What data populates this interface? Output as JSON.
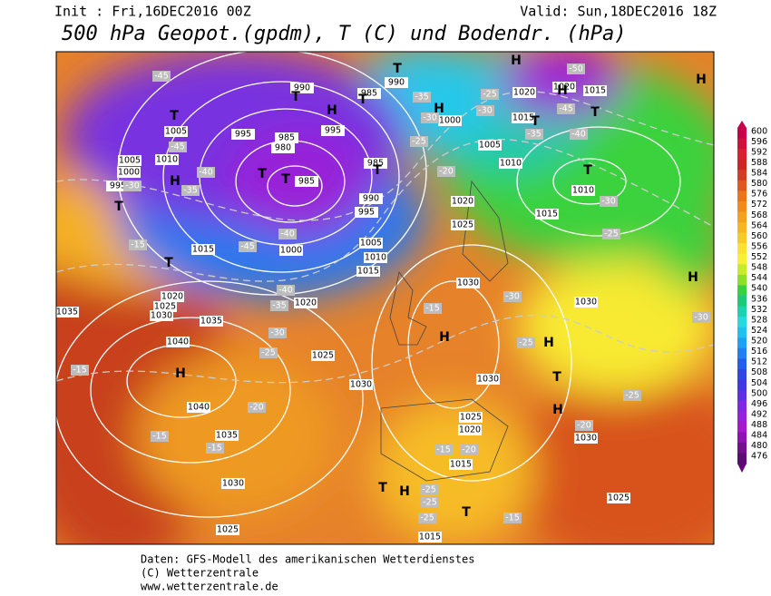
{
  "header": {
    "init": "Init : Fri,16DEC2016 00Z",
    "valid": "Valid: Sun,18DEC2016 18Z",
    "title": "500 hPa Geopot.(gpdm), T (C) und Bodendr. (hPa)"
  },
  "colorbar": {
    "levels": [
      600,
      596,
      592,
      588,
      584,
      580,
      576,
      572,
      568,
      564,
      560,
      556,
      552,
      548,
      544,
      540,
      536,
      532,
      528,
      524,
      520,
      516,
      512,
      508,
      504,
      500,
      496,
      492,
      488,
      484,
      480,
      476
    ],
    "colors": [
      "#c8004b",
      "#d0103c",
      "#d8202e",
      "#c8281e",
      "#d04020",
      "#dc5a1e",
      "#e8761e",
      "#f08c1c",
      "#f5a01e",
      "#f8b424",
      "#fbc82a",
      "#fde030",
      "#f8f032",
      "#c8ec2a",
      "#8ce02a",
      "#3ad23c",
      "#20c878",
      "#20d0b0",
      "#28d8e0",
      "#20c0f0",
      "#20a0f0",
      "#2080f0",
      "#2060e8",
      "#3048e0",
      "#4038e0",
      "#6030e0",
      "#8028e0",
      "#9820d8",
      "#a818c8",
      "#9010b0",
      "#780c90",
      "#600878"
    ]
  },
  "map": {
    "isobar_labels": [
      990,
      985,
      995,
      980,
      985,
      995,
      990,
      985,
      985,
      990,
      995,
      1000,
      1005,
      1010,
      1015,
      1020,
      1020,
      1015,
      1010,
      1015,
      1020,
      1025,
      1030,
      1030,
      1005,
      1010,
      1005,
      1000,
      995,
      1015,
      1000,
      1005,
      1010,
      1015,
      1020,
      1020,
      1025,
      1030,
      1035,
      1035,
      1040,
      1040,
      1035,
      1030,
      1025,
      1025,
      1030,
      1030,
      1025,
      1020,
      1015,
      1030,
      1025,
      1015
    ],
    "temperature_labels": [
      -45,
      -45,
      -40,
      -35,
      -30,
      -40,
      -45,
      -40,
      -35,
      -30,
      -25,
      -15,
      -15,
      -20,
      -15,
      -15,
      -35,
      -30,
      -25,
      -20,
      -25,
      -30,
      -35,
      -40,
      -45,
      -50,
      -30,
      -25,
      -30,
      -25,
      -15,
      -25,
      -20,
      -15,
      -20,
      -25,
      -25,
      -25,
      -15,
      -30
    ],
    "centers": [
      "T",
      "H",
      "H",
      "T",
      "T",
      "H",
      "H",
      "T",
      "H",
      "T",
      "T",
      "T",
      "T",
      "T",
      "H",
      "T",
      "T",
      "T",
      "H",
      "H",
      "H",
      "T",
      "H",
      "T",
      "H",
      "T",
      "H"
    ]
  },
  "footer": {
    "line1": "Daten: GFS-Modell des amerikanischen Wetterdienstes",
    "line2": "(C) Wetterzentrale",
    "line3": "www.wetterzentrale.de"
  }
}
